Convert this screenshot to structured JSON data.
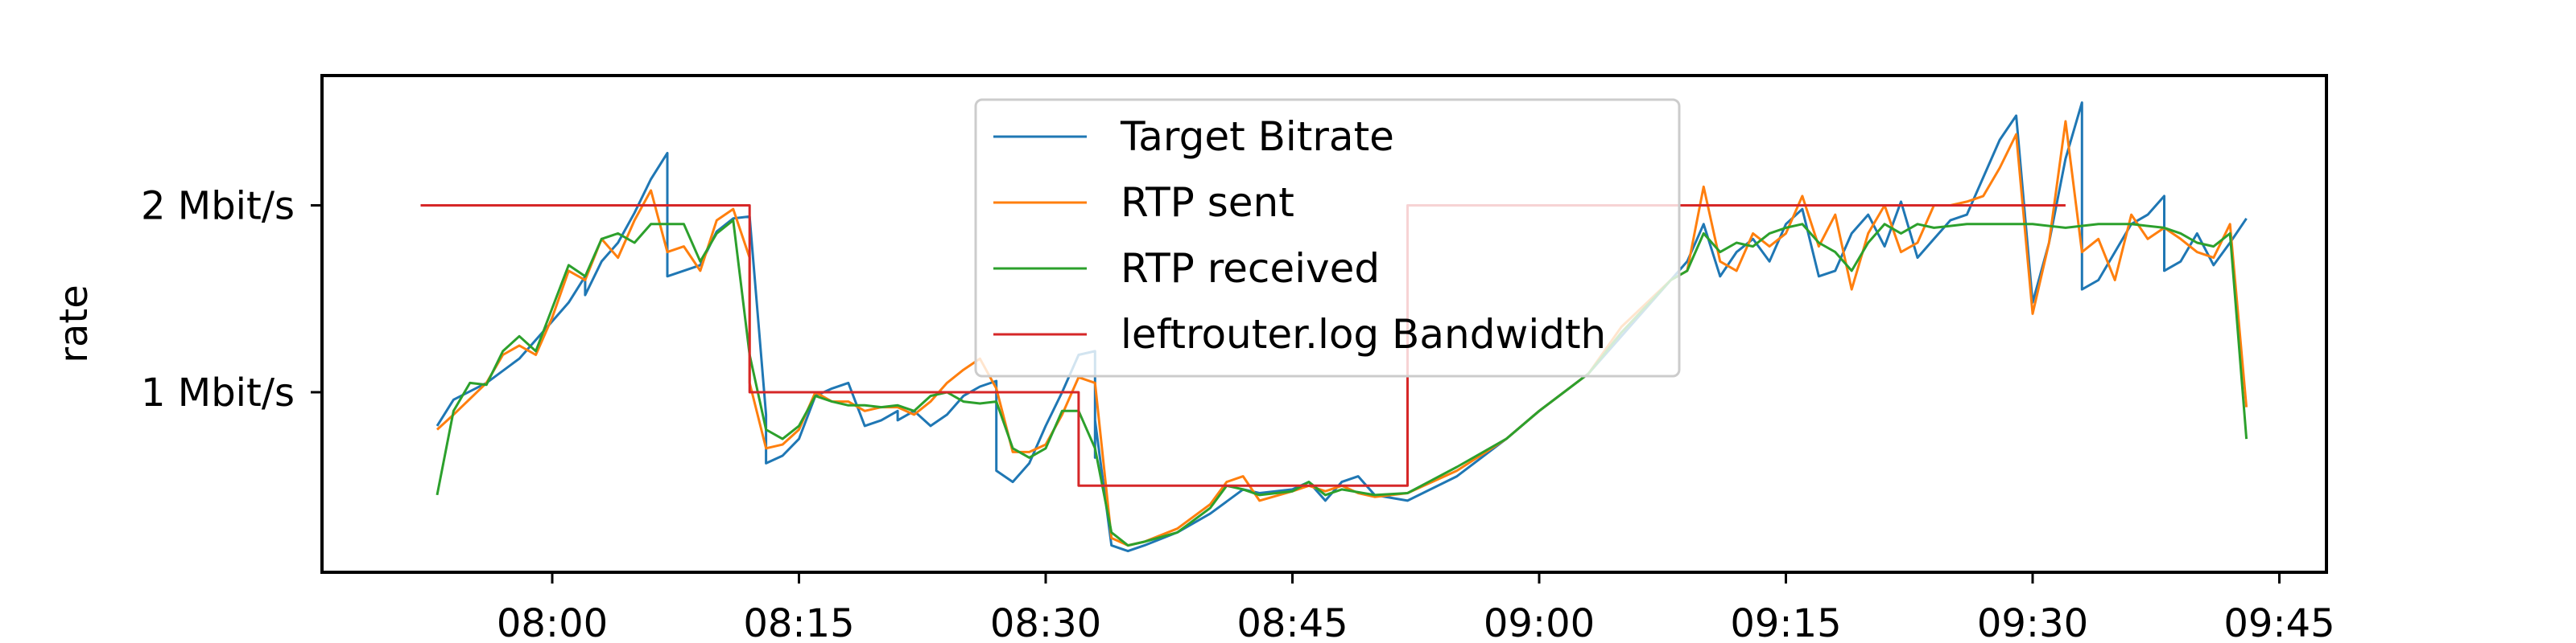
{
  "chart_data": {
    "type": "line",
    "title": "",
    "xlabel": "",
    "ylabel": "rate",
    "x_axis_format": "HH:MM",
    "x_ticks": [
      "08:00",
      "08:15",
      "08:30",
      "08:45",
      "09:00",
      "09:15",
      "09:30",
      "09:45"
    ],
    "y_ticks": [
      {
        "value": 1,
        "label": "1 Mbit/s"
      },
      {
        "value": 2,
        "label": "2 Mbit/s"
      }
    ],
    "xlim": [
      "07:46",
      "09:47"
    ],
    "ylim": [
      0,
      2.7
    ],
    "grid": false,
    "legend_position": "top-center",
    "series": [
      {
        "name": "Target Bitrate",
        "color": "#1f77b4",
        "points": [
          [
            "07:53",
            0.82
          ],
          [
            "07:54",
            0.96
          ],
          [
            "07:56",
            1.05
          ],
          [
            "07:58",
            1.18
          ],
          [
            "08:00",
            1.38
          ],
          [
            "08:01",
            1.48
          ],
          [
            "08:02",
            1.62
          ],
          [
            "08:02",
            1.52
          ],
          [
            "08:03",
            1.7
          ],
          [
            "08:04",
            1.8
          ],
          [
            "08:05",
            1.96
          ],
          [
            "08:06",
            2.14
          ],
          [
            "08:07",
            2.28
          ],
          [
            "08:07",
            1.62
          ],
          [
            "08:09",
            1.68
          ],
          [
            "08:10",
            1.86
          ],
          [
            "08:11",
            1.93
          ],
          [
            "08:12",
            1.94
          ],
          [
            "08:13",
            0.88
          ],
          [
            "08:13",
            0.62
          ],
          [
            "08:14",
            0.66
          ],
          [
            "08:15",
            0.75
          ],
          [
            "08:16",
            0.98
          ],
          [
            "08:17",
            1.02
          ],
          [
            "08:18",
            1.05
          ],
          [
            "08:19",
            0.82
          ],
          [
            "08:20",
            0.85
          ],
          [
            "08:21",
            0.9
          ],
          [
            "08:21",
            0.85
          ],
          [
            "08:22",
            0.9
          ],
          [
            "08:23",
            0.82
          ],
          [
            "08:24",
            0.88
          ],
          [
            "08:25",
            0.98
          ],
          [
            "08:26",
            1.03
          ],
          [
            "08:27",
            1.06
          ],
          [
            "08:27",
            0.58
          ],
          [
            "08:28",
            0.52
          ],
          [
            "08:29",
            0.62
          ],
          [
            "08:30",
            0.82
          ],
          [
            "08:31",
            1.0
          ],
          [
            "08:32",
            1.2
          ],
          [
            "08:33",
            1.22
          ],
          [
            "08:33",
            0.65
          ],
          [
            "08:33",
            0.85
          ],
          [
            "08:34",
            0.18
          ],
          [
            "08:35",
            0.15
          ],
          [
            "08:36",
            0.18
          ],
          [
            "08:38",
            0.25
          ],
          [
            "08:40",
            0.35
          ],
          [
            "08:42",
            0.48
          ],
          [
            "08:43",
            0.46
          ],
          [
            "08:45",
            0.48
          ],
          [
            "08:46",
            0.52
          ],
          [
            "08:47",
            0.42
          ],
          [
            "08:48",
            0.52
          ],
          [
            "08:49",
            0.55
          ],
          [
            "08:50",
            0.45
          ],
          [
            "08:52",
            0.42
          ],
          [
            "08:55",
            0.55
          ],
          [
            "08:58",
            0.75
          ],
          [
            "09:00",
            0.9
          ],
          [
            "09:03",
            1.1
          ],
          [
            "09:05",
            1.3
          ],
          [
            "09:08",
            1.6
          ],
          [
            "09:09",
            1.7
          ],
          [
            "09:10",
            1.9
          ],
          [
            "09:11",
            1.62
          ],
          [
            "09:12",
            1.75
          ],
          [
            "09:13",
            1.82
          ],
          [
            "09:14",
            1.7
          ],
          [
            "09:15",
            1.9
          ],
          [
            "09:16",
            1.98
          ],
          [
            "09:17",
            1.62
          ],
          [
            "09:18",
            1.65
          ],
          [
            "09:19",
            1.85
          ],
          [
            "09:20",
            1.95
          ],
          [
            "09:21",
            1.78
          ],
          [
            "09:22",
            2.02
          ],
          [
            "09:23",
            1.72
          ],
          [
            "09:24",
            1.82
          ],
          [
            "09:25",
            1.92
          ],
          [
            "09:26",
            1.95
          ],
          [
            "09:27",
            2.15
          ],
          [
            "09:28",
            2.35
          ],
          [
            "09:29",
            2.48
          ],
          [
            "09:30",
            1.48
          ],
          [
            "09:31",
            1.8
          ],
          [
            "09:32",
            2.25
          ],
          [
            "09:33",
            2.55
          ],
          [
            "09:33",
            1.55
          ],
          [
            "09:34",
            1.6
          ],
          [
            "09:35",
            1.75
          ],
          [
            "09:36",
            1.9
          ],
          [
            "09:37",
            1.95
          ],
          [
            "09:38",
            2.05
          ],
          [
            "09:38",
            1.65
          ],
          [
            "09:39",
            1.7
          ],
          [
            "09:40",
            1.85
          ],
          [
            "09:41",
            1.68
          ],
          [
            "09:42",
            1.8
          ],
          [
            "09:43",
            1.93
          ]
        ]
      },
      {
        "name": "RTP sent",
        "color": "#ff7f0e",
        "points": [
          [
            "07:53",
            0.8
          ],
          [
            "07:54",
            0.88
          ],
          [
            "07:56",
            1.05
          ],
          [
            "07:57",
            1.2
          ],
          [
            "07:58",
            1.25
          ],
          [
            "07:59",
            1.2
          ],
          [
            "08:00",
            1.4
          ],
          [
            "08:01",
            1.65
          ],
          [
            "08:02",
            1.6
          ],
          [
            "08:03",
            1.82
          ],
          [
            "08:04",
            1.72
          ],
          [
            "08:05",
            1.92
          ],
          [
            "08:06",
            2.08
          ],
          [
            "08:07",
            1.75
          ],
          [
            "08:08",
            1.78
          ],
          [
            "08:09",
            1.65
          ],
          [
            "08:10",
            1.92
          ],
          [
            "08:11",
            1.98
          ],
          [
            "08:12",
            1.72
          ],
          [
            "08:12",
            1.05
          ],
          [
            "08:13",
            0.7
          ],
          [
            "08:14",
            0.72
          ],
          [
            "08:15",
            0.8
          ],
          [
            "08:16",
            1.0
          ],
          [
            "08:17",
            0.95
          ],
          [
            "08:18",
            0.95
          ],
          [
            "08:19",
            0.9
          ],
          [
            "08:20",
            0.92
          ],
          [
            "08:21",
            0.92
          ],
          [
            "08:22",
            0.88
          ],
          [
            "08:23",
            0.95
          ],
          [
            "08:24",
            1.05
          ],
          [
            "08:25",
            1.12
          ],
          [
            "08:26",
            1.18
          ],
          [
            "08:27",
            1.02
          ],
          [
            "08:28",
            0.68
          ],
          [
            "08:29",
            0.68
          ],
          [
            "08:30",
            0.72
          ],
          [
            "08:31",
            0.88
          ],
          [
            "08:32",
            1.08
          ],
          [
            "08:33",
            1.05
          ],
          [
            "08:34",
            0.22
          ],
          [
            "08:35",
            0.18
          ],
          [
            "08:36",
            0.2
          ],
          [
            "08:38",
            0.27
          ],
          [
            "08:40",
            0.4
          ],
          [
            "08:41",
            0.52
          ],
          [
            "08:42",
            0.55
          ],
          [
            "08:43",
            0.42
          ],
          [
            "08:45",
            0.47
          ],
          [
            "08:46",
            0.5
          ],
          [
            "08:47",
            0.47
          ],
          [
            "08:48",
            0.5
          ],
          [
            "08:49",
            0.46
          ],
          [
            "08:50",
            0.44
          ],
          [
            "08:52",
            0.46
          ],
          [
            "08:55",
            0.58
          ],
          [
            "08:58",
            0.75
          ],
          [
            "09:00",
            0.9
          ],
          [
            "09:03",
            1.1
          ],
          [
            "09:05",
            1.35
          ],
          [
            "09:08",
            1.6
          ],
          [
            "09:09",
            1.65
          ],
          [
            "09:10",
            2.1
          ],
          [
            "09:11",
            1.7
          ],
          [
            "09:12",
            1.65
          ],
          [
            "09:13",
            1.85
          ],
          [
            "09:14",
            1.78
          ],
          [
            "09:15",
            1.85
          ],
          [
            "09:16",
            2.05
          ],
          [
            "09:17",
            1.78
          ],
          [
            "09:18",
            1.95
          ],
          [
            "09:19",
            1.55
          ],
          [
            "09:20",
            1.85
          ],
          [
            "09:21",
            2.0
          ],
          [
            "09:22",
            1.75
          ],
          [
            "09:23",
            1.8
          ],
          [
            "09:24",
            2.0
          ],
          [
            "09:25",
            2.0
          ],
          [
            "09:26",
            2.02
          ],
          [
            "09:27",
            2.05
          ],
          [
            "09:28",
            2.2
          ],
          [
            "09:29",
            2.38
          ],
          [
            "09:30",
            1.42
          ],
          [
            "09:31",
            1.8
          ],
          [
            "09:32",
            2.45
          ],
          [
            "09:33",
            1.75
          ],
          [
            "09:34",
            1.82
          ],
          [
            "09:35",
            1.6
          ],
          [
            "09:36",
            1.95
          ],
          [
            "09:37",
            1.82
          ],
          [
            "09:38",
            1.88
          ],
          [
            "09:39",
            1.82
          ],
          [
            "09:40",
            1.75
          ],
          [
            "09:41",
            1.72
          ],
          [
            "09:42",
            1.9
          ],
          [
            "09:43",
            0.92
          ]
        ]
      },
      {
        "name": "RTP received",
        "color": "#2ca02c",
        "points": [
          [
            "07:53",
            0.45
          ],
          [
            "07:54",
            0.9
          ],
          [
            "07:55",
            1.05
          ],
          [
            "07:56",
            1.04
          ],
          [
            "07:57",
            1.22
          ],
          [
            "07:58",
            1.3
          ],
          [
            "07:59",
            1.22
          ],
          [
            "08:00",
            1.45
          ],
          [
            "08:01",
            1.68
          ],
          [
            "08:02",
            1.62
          ],
          [
            "08:03",
            1.82
          ],
          [
            "08:04",
            1.85
          ],
          [
            "08:05",
            1.8
          ],
          [
            "08:06",
            1.9
          ],
          [
            "08:07",
            1.9
          ],
          [
            "08:08",
            1.9
          ],
          [
            "08:09",
            1.7
          ],
          [
            "08:10",
            1.85
          ],
          [
            "08:11",
            1.92
          ],
          [
            "08:12",
            1.2
          ],
          [
            "08:13",
            0.8
          ],
          [
            "08:14",
            0.75
          ],
          [
            "08:15",
            0.82
          ],
          [
            "08:16",
            0.98
          ],
          [
            "08:17",
            0.95
          ],
          [
            "08:18",
            0.93
          ],
          [
            "08:19",
            0.93
          ],
          [
            "08:20",
            0.92
          ],
          [
            "08:21",
            0.93
          ],
          [
            "08:22",
            0.9
          ],
          [
            "08:23",
            0.98
          ],
          [
            "08:24",
            1.0
          ],
          [
            "08:25",
            0.95
          ],
          [
            "08:26",
            0.94
          ],
          [
            "08:27",
            0.95
          ],
          [
            "08:28",
            0.7
          ],
          [
            "08:29",
            0.65
          ],
          [
            "08:30",
            0.7
          ],
          [
            "08:31",
            0.9
          ],
          [
            "08:32",
            0.9
          ],
          [
            "08:33",
            0.7
          ],
          [
            "08:34",
            0.25
          ],
          [
            "08:35",
            0.18
          ],
          [
            "08:36",
            0.2
          ],
          [
            "08:38",
            0.25
          ],
          [
            "08:40",
            0.38
          ],
          [
            "08:41",
            0.5
          ],
          [
            "08:42",
            0.48
          ],
          [
            "08:43",
            0.45
          ],
          [
            "08:45",
            0.47
          ],
          [
            "08:46",
            0.52
          ],
          [
            "08:47",
            0.45
          ],
          [
            "08:48",
            0.48
          ],
          [
            "08:50",
            0.45
          ],
          [
            "08:52",
            0.46
          ],
          [
            "08:55",
            0.6
          ],
          [
            "08:58",
            0.75
          ],
          [
            "09:00",
            0.9
          ],
          [
            "09:03",
            1.1
          ],
          [
            "09:05",
            1.32
          ],
          [
            "09:08",
            1.6
          ],
          [
            "09:09",
            1.65
          ],
          [
            "09:10",
            1.85
          ],
          [
            "09:11",
            1.75
          ],
          [
            "09:12",
            1.8
          ],
          [
            "09:13",
            1.78
          ],
          [
            "09:14",
            1.85
          ],
          [
            "09:15",
            1.88
          ],
          [
            "09:16",
            1.9
          ],
          [
            "09:17",
            1.8
          ],
          [
            "09:18",
            1.75
          ],
          [
            "09:19",
            1.65
          ],
          [
            "09:20",
            1.8
          ],
          [
            "09:21",
            1.9
          ],
          [
            "09:22",
            1.85
          ],
          [
            "09:23",
            1.9
          ],
          [
            "09:24",
            1.88
          ],
          [
            "09:26",
            1.9
          ],
          [
            "09:28",
            1.9
          ],
          [
            "09:30",
            1.9
          ],
          [
            "09:32",
            1.88
          ],
          [
            "09:34",
            1.9
          ],
          [
            "09:36",
            1.9
          ],
          [
            "09:38",
            1.88
          ],
          [
            "09:39",
            1.85
          ],
          [
            "09:40",
            1.8
          ],
          [
            "09:41",
            1.78
          ],
          [
            "09:42",
            1.85
          ],
          [
            "09:43",
            0.75
          ]
        ]
      },
      {
        "name": "leftrouter.log Bandwidth",
        "color": "#d62728",
        "step": true,
        "points": [
          [
            "07:52",
            2.0
          ],
          [
            "08:12",
            2.0
          ],
          [
            "08:12",
            1.0
          ],
          [
            "08:32",
            1.0
          ],
          [
            "08:32",
            0.5
          ],
          [
            "08:52",
            0.5
          ],
          [
            "08:52",
            2.0
          ],
          [
            "09:32",
            2.0
          ]
        ]
      }
    ]
  }
}
